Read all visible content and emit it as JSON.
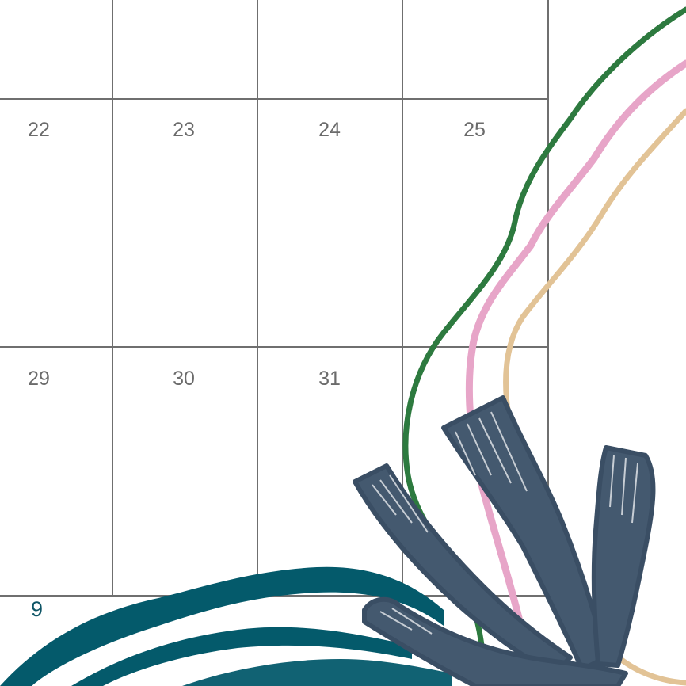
{
  "calendar": {
    "week_row_1": [
      "22",
      "23",
      "24",
      "25"
    ],
    "week_row_2": [
      "29",
      "30",
      "31"
    ]
  },
  "footer": {
    "page_number": "9"
  },
  "colors": {
    "grid": "#6f6f6f",
    "day_text": "#6b6b6b",
    "page_number": "#0e5566",
    "green_stem": "#2d7a3f",
    "pink_stem": "#e7a5c8",
    "tan_stem": "#e2c396",
    "slate_petals": "#44596f",
    "teal_leaves": "#045a6b"
  },
  "decoration": {
    "icon": "botanical-flower-illustration"
  }
}
